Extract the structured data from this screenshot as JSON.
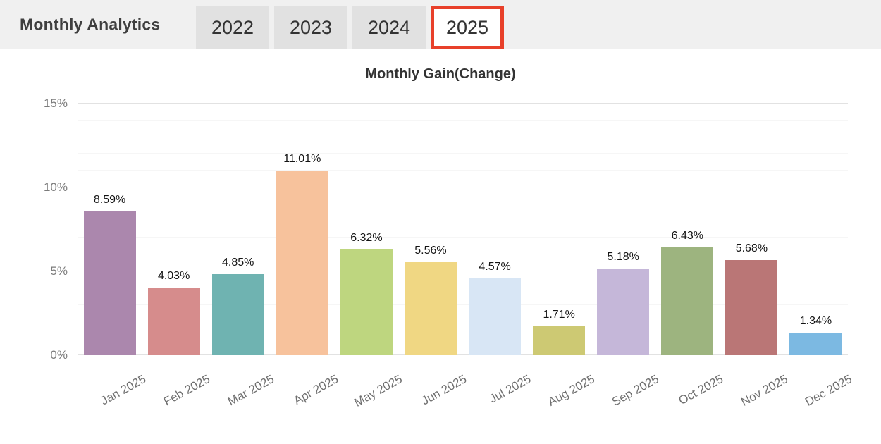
{
  "header": {
    "title": "Monthly Analytics",
    "tabs": [
      {
        "label": "2022",
        "active": false
      },
      {
        "label": "2023",
        "active": false
      },
      {
        "label": "2024",
        "active": false
      },
      {
        "label": "2025",
        "active": true
      }
    ],
    "active_tab_border_color": "#e8402a",
    "header_background": "#f0f0f0",
    "inactive_tab_background": "#e1e1e1"
  },
  "chart_data": {
    "type": "bar",
    "title": "Monthly Gain(Change)",
    "categories": [
      "Jan 2025",
      "Feb 2025",
      "Mar 2025",
      "Apr 2025",
      "May 2025",
      "Jun 2025",
      "Jul 2025",
      "Aug 2025",
      "Sep 2025",
      "Oct 2025",
      "Nov 2025",
      "Dec 2025"
    ],
    "values": [
      8.59,
      4.03,
      4.85,
      11.01,
      6.32,
      5.56,
      4.57,
      1.71,
      5.18,
      6.43,
      5.68,
      1.34
    ],
    "value_labels": [
      "8.59%",
      "4.03%",
      "4.85%",
      "11.01%",
      "6.32%",
      "5.56%",
      "4.57%",
      "1.71%",
      "5.18%",
      "6.43%",
      "5.68%",
      "1.34%"
    ],
    "bar_colors": [
      "#ab87ad",
      "#d68c8c",
      "#6fb3b1",
      "#f7c29c",
      "#bed67f",
      "#f0d783",
      "#d8e6f5",
      "#cdc973",
      "#c5b7d9",
      "#9db47f",
      "#ba7676",
      "#7cb9e2"
    ],
    "xlabel": "",
    "ylabel": "",
    "ylim": [
      0,
      15
    ],
    "yticks": [
      {
        "value": 0,
        "label": "0%"
      },
      {
        "value": 5,
        "label": "5%"
      },
      {
        "value": 10,
        "label": "10%"
      },
      {
        "value": 15,
        "label": "15%"
      }
    ],
    "minor_grid_step": 1,
    "grid": true,
    "legend": "none"
  }
}
